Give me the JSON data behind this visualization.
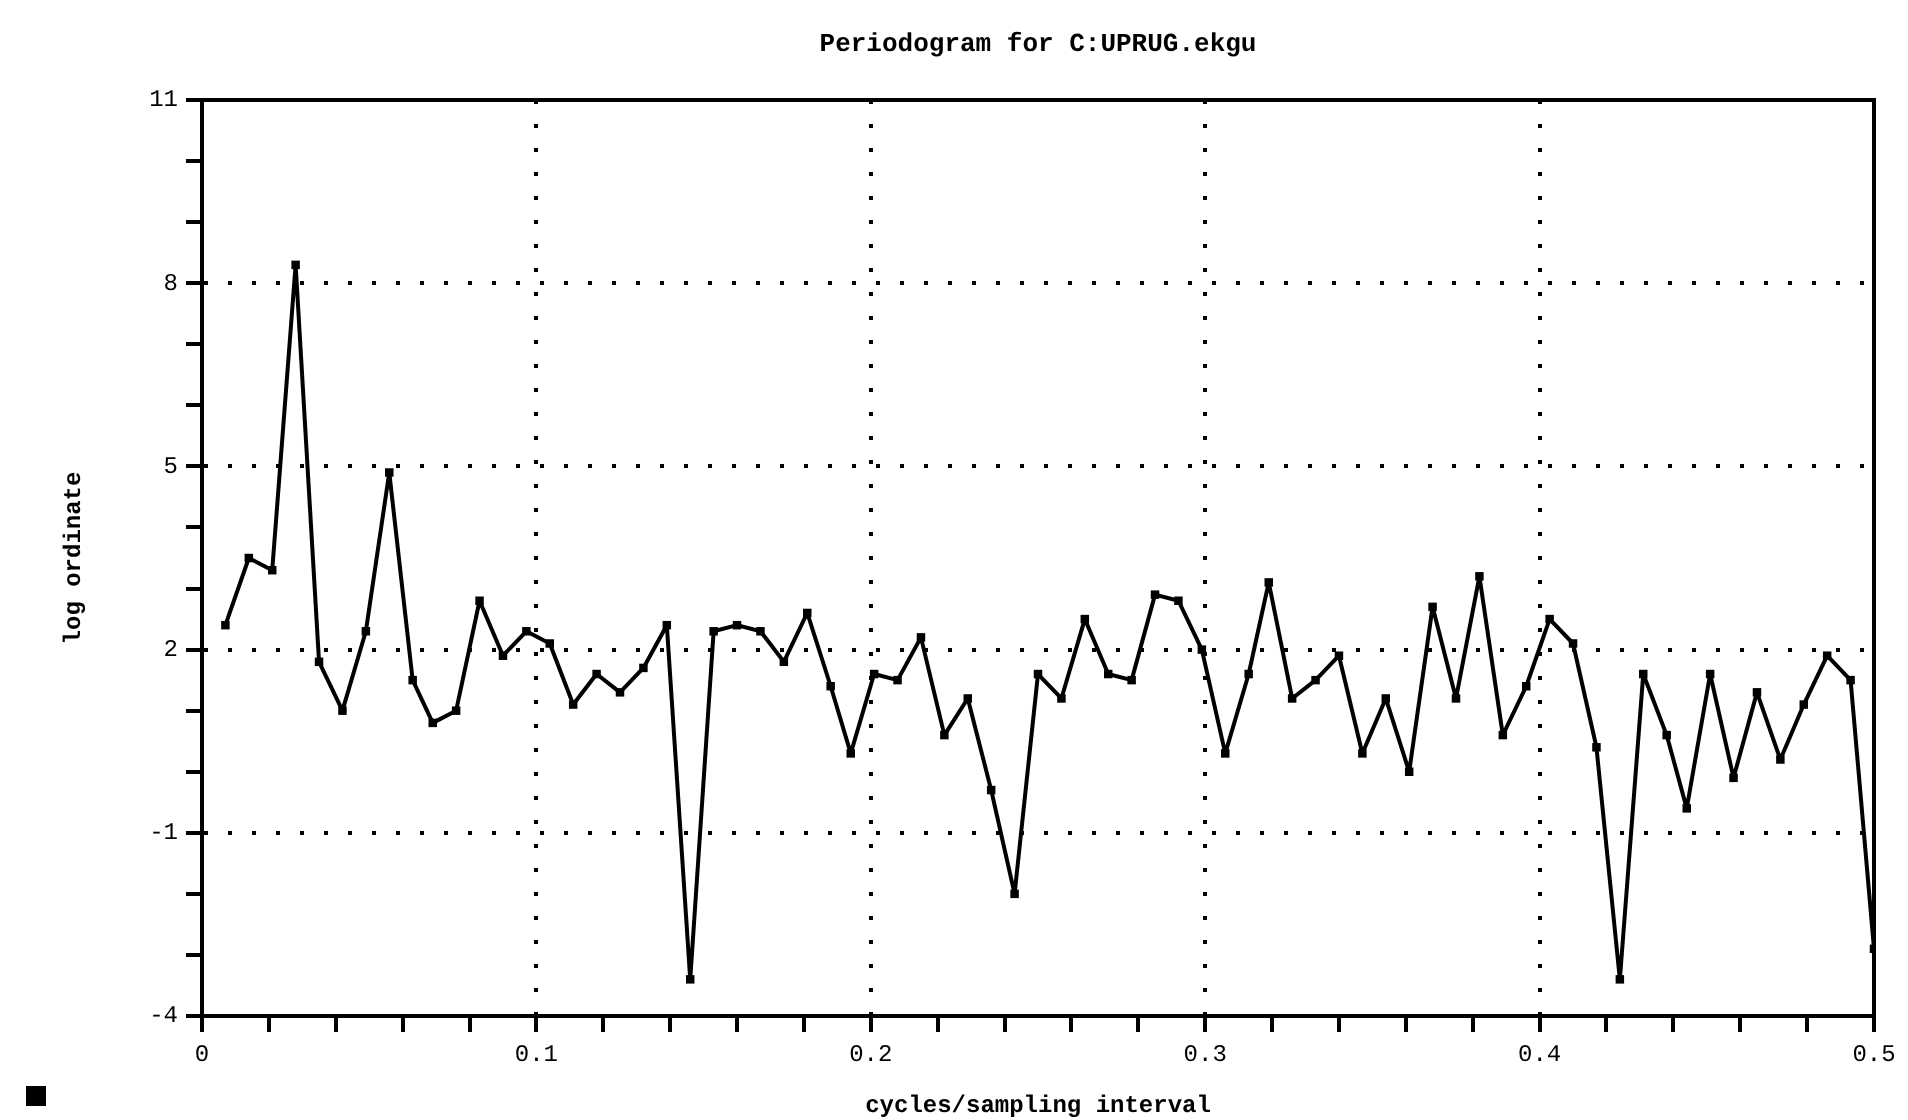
{
  "chart_data": {
    "type": "line",
    "title": "Periodogram for C:UPRUG.ekgu",
    "xlabel": "cycles/sampling interval",
    "ylabel": "log ordinate",
    "x": [
      0.007,
      0.014,
      0.021,
      0.028,
      0.035,
      0.042,
      0.049,
      0.056,
      0.063,
      0.069,
      0.076,
      0.083,
      0.09,
      0.097,
      0.104,
      0.111,
      0.118,
      0.125,
      0.132,
      0.139,
      0.146,
      0.153,
      0.16,
      0.167,
      0.174,
      0.181,
      0.188,
      0.194,
      0.201,
      0.208,
      0.215,
      0.222,
      0.229,
      0.236,
      0.243,
      0.25,
      0.257,
      0.264,
      0.271,
      0.278,
      0.285,
      0.292,
      0.299,
      0.306,
      0.313,
      0.319,
      0.326,
      0.333,
      0.34,
      0.347,
      0.354,
      0.361,
      0.368,
      0.375,
      0.382,
      0.389,
      0.396,
      0.403,
      0.41,
      0.417,
      0.424,
      0.431,
      0.438,
      0.444,
      0.451,
      0.458,
      0.465,
      0.472,
      0.479,
      0.486,
      0.493,
      0.5
    ],
    "series": [
      {
        "color": "#000000",
        "values": [
          2.4,
          3.5,
          3.3,
          8.3,
          1.8,
          1.0,
          2.3,
          4.9,
          1.5,
          0.8,
          1.0,
          2.8,
          1.9,
          2.3,
          2.1,
          1.1,
          1.6,
          1.3,
          1.7,
          2.4,
          -3.4,
          2.3,
          2.4,
          2.3,
          1.8,
          2.6,
          1.4,
          0.3,
          1.6,
          1.5,
          2.2,
          0.6,
          1.2,
          -0.3,
          -2.0,
          1.6,
          1.2,
          2.5,
          1.6,
          1.5,
          2.9,
          2.8,
          2.0,
          0.3,
          1.6,
          3.1,
          1.2,
          1.5,
          1.9,
          0.3,
          1.2,
          0.0,
          2.7,
          1.2,
          3.2,
          0.6,
          1.4,
          2.5,
          2.1,
          0.4,
          -3.4,
          1.6,
          0.6,
          -0.6,
          1.6,
          -0.1,
          1.3,
          0.2,
          1.1,
          1.9,
          1.5,
          -2.9
        ]
      }
    ],
    "xlim": [
      0,
      0.5
    ],
    "xticks": [
      0,
      {
        "value": 0.02,
        "label": null
      },
      {
        "value": 0.04,
        "label": null
      },
      {
        "value": 0.06,
        "label": null
      },
      {
        "value": 0.08,
        "label": null
      },
      0.1,
      {
        "value": 0.12,
        "label": null
      },
      {
        "value": 0.14,
        "label": null
      },
      {
        "value": 0.16,
        "label": null
      },
      {
        "value": 0.18,
        "label": null
      },
      0.2,
      {
        "value": 0.22,
        "label": null
      },
      {
        "value": 0.24,
        "label": null
      },
      {
        "value": 0.26,
        "label": null
      },
      {
        "value": 0.28,
        "label": null
      },
      0.3,
      {
        "value": 0.32,
        "label": null
      },
      {
        "value": 0.34,
        "label": null
      },
      {
        "value": 0.36,
        "label": null
      },
      {
        "value": 0.38,
        "label": null
      },
      0.4,
      {
        "value": 0.42,
        "label": null
      },
      {
        "value": 0.44,
        "label": null
      },
      {
        "value": 0.46,
        "label": null
      },
      {
        "value": 0.48,
        "label": null
      },
      0.5
    ],
    "ylim": [
      -4,
      11
    ],
    "yticks": [
      -4,
      {
        "value": -3,
        "label": null
      },
      {
        "value": -2,
        "label": null
      },
      -1,
      {
        "value": 0,
        "label": null
      },
      {
        "value": 1,
        "label": null
      },
      2,
      {
        "value": 3,
        "label": null
      },
      {
        "value": 4,
        "label": null
      },
      5,
      {
        "value": 6,
        "label": null
      },
      {
        "value": 7,
        "label": null
      },
      8,
      {
        "value": 9,
        "label": null
      },
      {
        "value": 10,
        "label": null
      },
      11
    ],
    "grid": true,
    "legend": false,
    "marker": "square",
    "line_style": "solid"
  }
}
